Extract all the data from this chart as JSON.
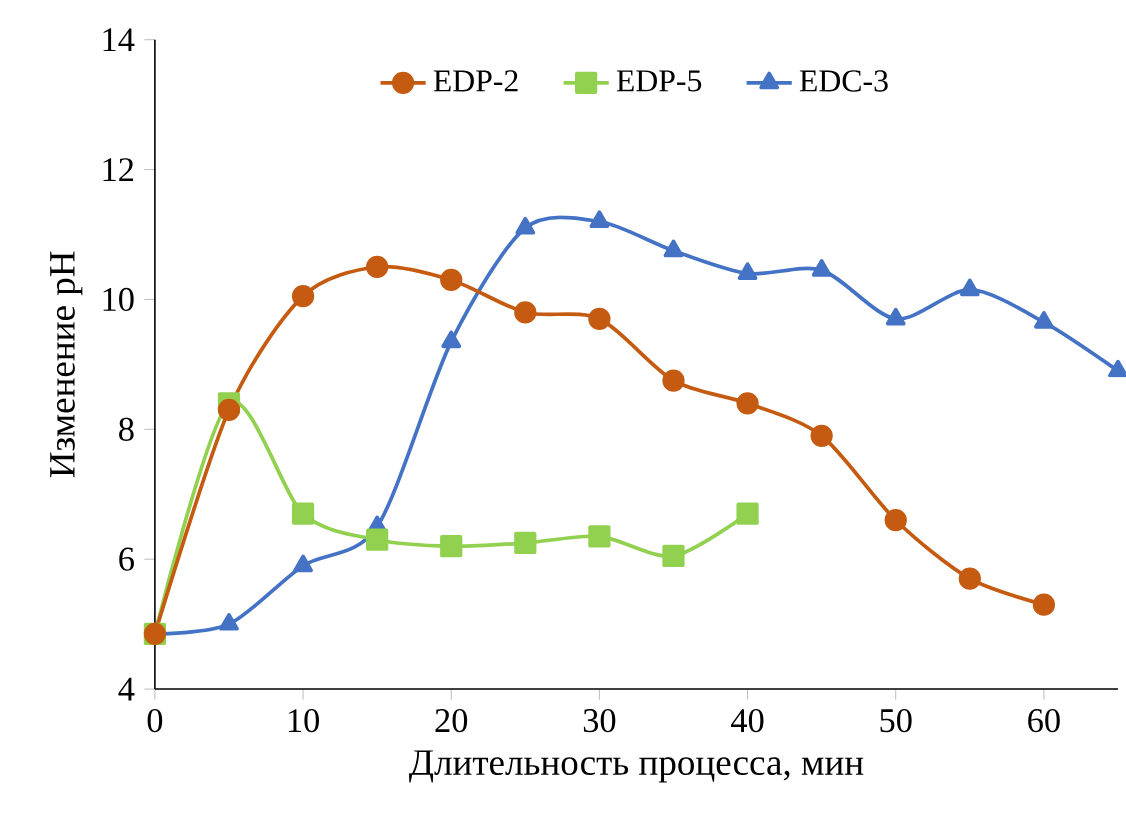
{
  "chart_data": {
    "type": "line",
    "xlabel": "Длительность процесса, мин",
    "ylabel": "Изменение pH",
    "x": [
      0,
      5,
      10,
      15,
      20,
      25,
      30,
      35,
      40,
      45,
      50,
      55,
      60,
      65
    ],
    "series": [
      {
        "name": "EDP-2",
        "color": "#c55a11",
        "marker": "circle",
        "values": [
          4.85,
          8.3,
          10.05,
          10.5,
          10.3,
          9.8,
          9.7,
          8.75,
          8.4,
          7.9,
          6.6,
          5.7,
          5.3,
          null
        ]
      },
      {
        "name": "EDP-5",
        "color": "#92d050",
        "marker": "square",
        "values": [
          4.85,
          8.4,
          6.7,
          6.3,
          6.2,
          6.25,
          6.35,
          6.05,
          6.7,
          null,
          null,
          null,
          null,
          null
        ]
      },
      {
        "name": "EDC-3",
        "color": "#4472c4",
        "marker": "triangle",
        "values": [
          4.85,
          5.0,
          5.9,
          6.5,
          9.35,
          11.1,
          11.2,
          10.75,
          10.4,
          10.45,
          9.7,
          10.15,
          9.65,
          8.9
        ]
      }
    ],
    "xlim": [
      0,
      65
    ],
    "ylim": [
      4,
      14
    ],
    "xticks": [
      0,
      10,
      20,
      30,
      40,
      50,
      60
    ],
    "yticks": [
      4,
      6,
      8,
      10,
      12,
      14
    ],
    "legend": "top",
    "grid": false,
    "line_style": "solid"
  }
}
